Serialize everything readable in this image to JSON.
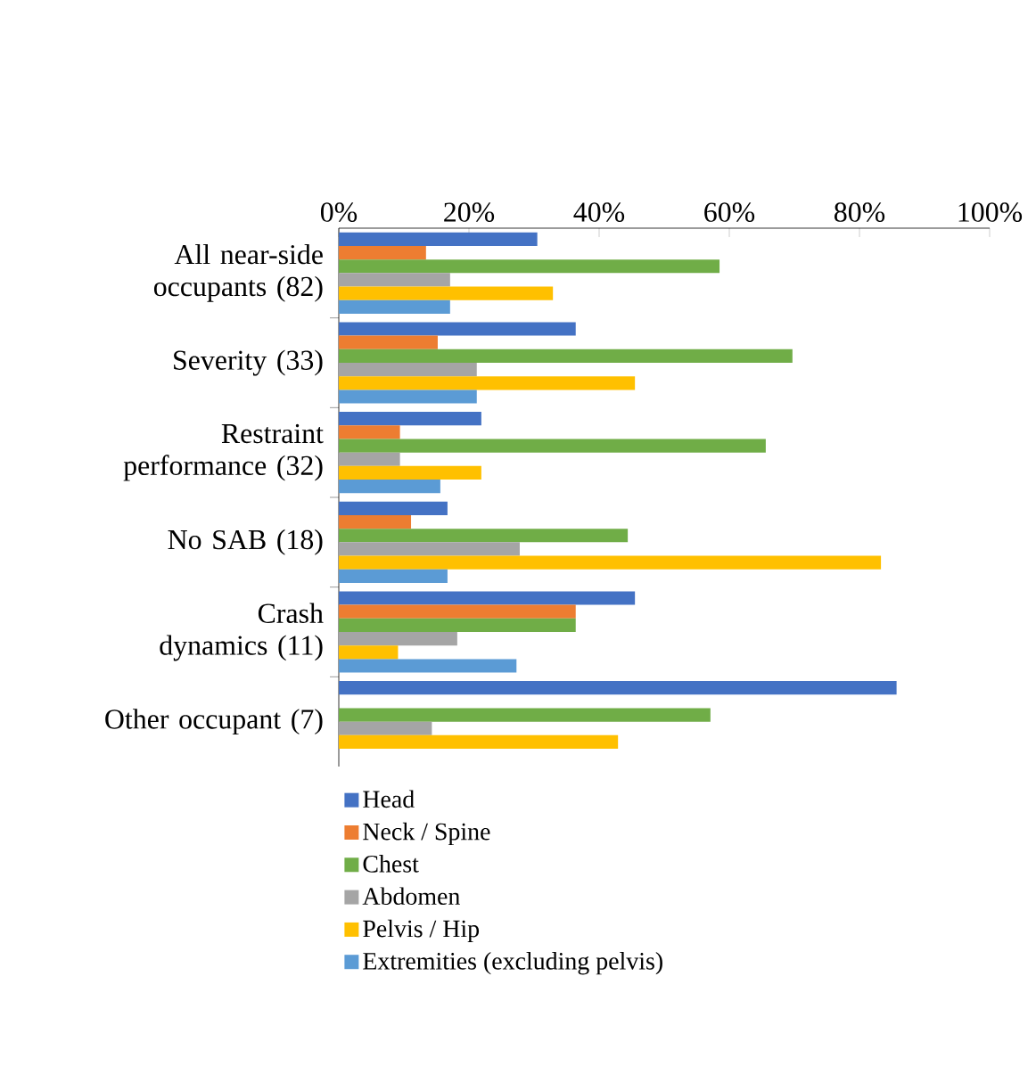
{
  "chart_data": {
    "type": "bar",
    "orientation": "horizontal",
    "categories": [
      "All near-side occupants (82)",
      "Severity (33)",
      "Restraint performance (32)",
      "No SAB (18)",
      "Crash dynamics (11)",
      "Other occupant (7)"
    ],
    "series": [
      {
        "name": "Head",
        "color": "#4472c4",
        "values": [
          30.5,
          36.4,
          21.9,
          16.7,
          45.5,
          85.7
        ]
      },
      {
        "name": "Neck / Spine",
        "color": "#ed7d31",
        "values": [
          13.4,
          15.2,
          9.4,
          11.1,
          36.4,
          0
        ]
      },
      {
        "name": "Chest",
        "color": "#70ad47",
        "values": [
          58.5,
          69.7,
          65.6,
          44.4,
          36.4,
          57.1
        ]
      },
      {
        "name": "Abdomen",
        "color": "#a5a5a5",
        "values": [
          17.1,
          21.2,
          9.4,
          27.8,
          18.2,
          14.3
        ]
      },
      {
        "name": "Pelvis / Hip",
        "color": "#ffc000",
        "values": [
          32.9,
          45.5,
          21.9,
          83.3,
          9.1,
          42.9
        ]
      },
      {
        "name": "Extremities (excluding pelvis)",
        "color": "#5b9bd5",
        "values": [
          17.1,
          21.2,
          15.6,
          16.7,
          27.3,
          0
        ]
      }
    ],
    "xlim": [
      0,
      100
    ],
    "xticks": [
      {
        "value": 0,
        "label": "0%"
      },
      {
        "value": 20,
        "label": "20%"
      },
      {
        "value": 40,
        "label": "40%"
      },
      {
        "value": 60,
        "label": "60%"
      },
      {
        "value": 80,
        "label": "80%"
      },
      {
        "value": 100,
        "label": "100%"
      }
    ],
    "legend": "bottom"
  }
}
